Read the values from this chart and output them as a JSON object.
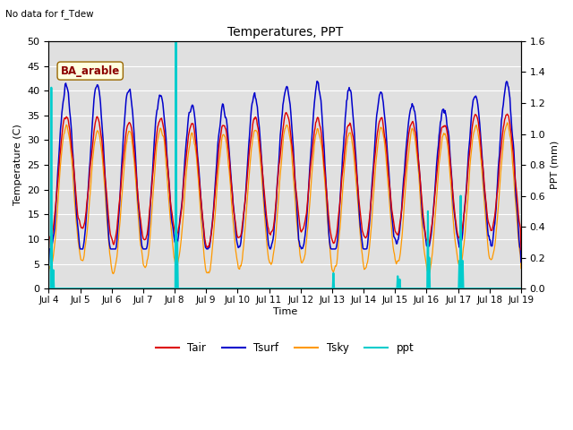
{
  "title": "Temperatures, PPT",
  "subtitle": "No data for f_Tdew",
  "xlabel": "Time",
  "ylabel_left": "Temperature (C)",
  "ylabel_right": "PPT (mm)",
  "annotation": "BA_arable",
  "ylim_left": [
    0,
    50
  ],
  "ylim_right": [
    0,
    1.6
  ],
  "yticks_left": [
    0,
    5,
    10,
    15,
    20,
    25,
    30,
    35,
    40,
    45,
    50
  ],
  "yticks_right": [
    0.0,
    0.2,
    0.4,
    0.6,
    0.8,
    1.0,
    1.2,
    1.4,
    1.6
  ],
  "color_tair": "#dd0000",
  "color_tsurf": "#0000cc",
  "color_tsky": "#ff9900",
  "color_ppt": "#00cccc",
  "bg_color": "#e0e0e0",
  "legend_labels": [
    "Tair",
    "Tsurf",
    "Tsky",
    "ppt"
  ]
}
